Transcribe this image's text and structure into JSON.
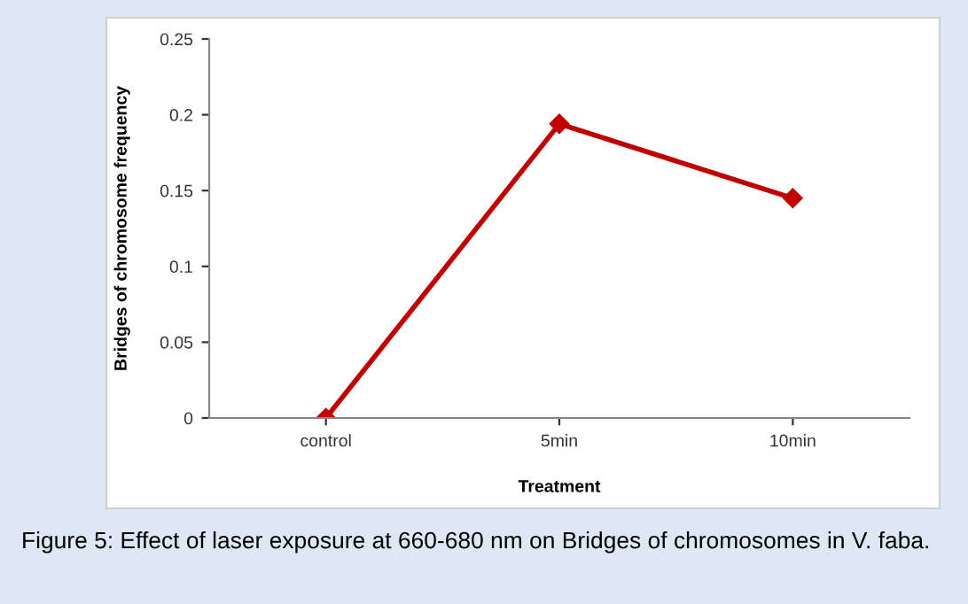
{
  "chart_data": {
    "type": "line",
    "xlabel": "Treatment",
    "ylabel": "Bridges of chromosome frequency",
    "categories": [
      "control",
      "5min",
      "10min"
    ],
    "series": [
      {
        "color": "#c00000",
        "values": [
          0,
          0.194,
          0.145
        ]
      }
    ],
    "ylim": [
      0,
      0.25
    ],
    "yticks": [
      0,
      0.05,
      0.1,
      0.15,
      0.2,
      0.25
    ],
    "grid": false,
    "marker": "diamond",
    "line_style": "solid",
    "legend": false,
    "annotations": [
      "Figure 5: Effect of laser exposure at 660-680 nm on Bridges of chromosomes in V. faba."
    ]
  }
}
